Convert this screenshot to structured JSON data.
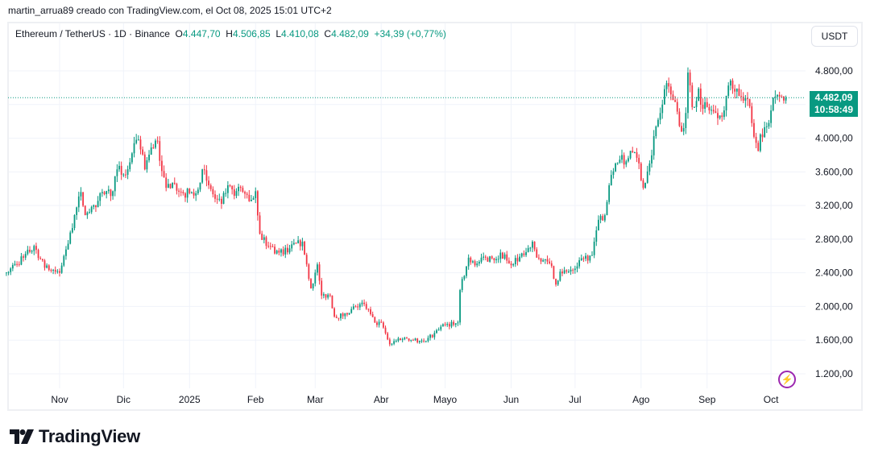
{
  "caption": "martin_arrua89 creado con TradingView.com, el Oct 08, 2025 15:01 UTC+2",
  "legend": {
    "symbol": "Ethereum / TetherUS · 1D · Binance",
    "open_label": "O",
    "open": "4.447,70",
    "high_label": "H",
    "high": "4.506,85",
    "low_label": "L",
    "low": "4.410,08",
    "close_label": "C",
    "close": "4.482,09",
    "change": "+34,39 (+0,77%)"
  },
  "currency_button": "USDT",
  "last_price": {
    "price": "4.482,09",
    "countdown": "10:58:49"
  },
  "logo_text": "TradingView",
  "icons": {
    "alert": "lightning-icon",
    "logo": "tradingview-logo-icon"
  },
  "colors": {
    "up": "#089981",
    "down": "#F23645",
    "last_price_line": "#089981",
    "alert": "#9c27b0"
  },
  "chart_data": {
    "type": "candlestick",
    "interval": "1D",
    "y_ticks": [
      "4.800,00",
      "4.000,00",
      "3.600,00",
      "3.200,00",
      "2.800,00",
      "2.400,00",
      "2.000,00",
      "1.600,00",
      "1.200,00"
    ],
    "y_tick_values": [
      4800,
      4000,
      3600,
      3200,
      2800,
      2400,
      2000,
      1600,
      1200
    ],
    "x_ticks": [
      {
        "label": "Nov",
        "date": "2024-11-01"
      },
      {
        "label": "Dic",
        "date": "2024-12-01"
      },
      {
        "label": "2025",
        "date": "2025-01-01"
      },
      {
        "label": "Feb",
        "date": "2025-02-01"
      },
      {
        "label": "Mar",
        "date": "2025-03-01"
      },
      {
        "label": "Abr",
        "date": "2025-04-01"
      },
      {
        "label": "Mayo",
        "date": "2025-05-01"
      },
      {
        "label": "Jun",
        "date": "2025-06-01"
      },
      {
        "label": "Jul",
        "date": "2025-07-01"
      },
      {
        "label": "Ago",
        "date": "2025-08-01"
      },
      {
        "label": "Sep",
        "date": "2025-09-01"
      },
      {
        "label": "Oct",
        "date": "2025-10-01"
      }
    ],
    "ylim": [
      1000,
      5000
    ],
    "grid": true,
    "last_candle": {
      "date": "2025-10-08",
      "open": 4447.7,
      "high": 4506.85,
      "low": 4410.08,
      "close": 4482.09
    },
    "approx_closes": [
      [
        "2024-10-07",
        2405
      ],
      [
        "2024-10-15",
        2580
      ],
      [
        "2024-10-20",
        2720
      ],
      [
        "2024-10-25",
        2460
      ],
      [
        "2024-11-01",
        2400
      ],
      [
        "2024-11-06",
        2880
      ],
      [
        "2024-11-11",
        3360
      ],
      [
        "2024-11-13",
        3085
      ],
      [
        "2024-11-18",
        3180
      ],
      [
        "2024-11-21",
        3360
      ],
      [
        "2024-11-26",
        3370
      ],
      [
        "2024-11-28",
        3630
      ],
      [
        "2024-12-02",
        3565
      ],
      [
        "2024-12-05",
        3820
      ],
      [
        "2024-12-08",
        3985
      ],
      [
        "2024-12-11",
        3630
      ],
      [
        "2024-12-14",
        3890
      ],
      [
        "2024-12-17",
        3965
      ],
      [
        "2024-12-19",
        3610
      ],
      [
        "2024-12-21",
        3410
      ],
      [
        "2024-12-24",
        3470
      ],
      [
        "2024-12-29",
        3345
      ],
      [
        "2025-01-04",
        3345
      ],
      [
        "2025-01-07",
        3630
      ],
      [
        "2025-01-10",
        3440
      ],
      [
        "2025-01-13",
        3280
      ],
      [
        "2025-01-16",
        3220
      ],
      [
        "2025-01-19",
        3440
      ],
      [
        "2025-01-22",
        3315
      ],
      [
        "2025-01-25",
        3410
      ],
      [
        "2025-01-29",
        3250
      ],
      [
        "2025-02-01",
        3370
      ],
      [
        "2025-02-03",
        2865
      ],
      [
        "2025-02-07",
        2720
      ],
      [
        "2025-02-12",
        2640
      ],
      [
        "2025-02-17",
        2690
      ],
      [
        "2025-02-23",
        2770
      ],
      [
        "2025-02-25",
        2500
      ],
      [
        "2025-02-27",
        2215
      ],
      [
        "2025-03-02",
        2500
      ],
      [
        "2025-03-04",
        2130
      ],
      [
        "2025-03-08",
        2130
      ],
      [
        "2025-03-10",
        1880
      ],
      [
        "2025-03-16",
        1905
      ],
      [
        "2025-03-20",
        2000
      ],
      [
        "2025-03-24",
        2030
      ],
      [
        "2025-03-29",
        1810
      ],
      [
        "2025-04-01",
        1810
      ],
      [
        "2025-04-05",
        1550
      ],
      [
        "2025-04-09",
        1620
      ],
      [
        "2025-04-13",
        1620
      ],
      [
        "2025-04-19",
        1590
      ],
      [
        "2025-04-22",
        1590
      ],
      [
        "2025-04-26",
        1685
      ],
      [
        "2025-05-01",
        1780
      ],
      [
        "2025-05-07",
        1810
      ],
      [
        "2025-05-08",
        2195
      ],
      [
        "2025-05-12",
        2580
      ],
      [
        "2025-05-16",
        2510
      ],
      [
        "2025-05-20",
        2580
      ],
      [
        "2025-05-24",
        2550
      ],
      [
        "2025-05-27",
        2640
      ],
      [
        "2025-05-31",
        2510
      ],
      [
        "2025-06-07",
        2610
      ],
      [
        "2025-06-11",
        2770
      ],
      [
        "2025-06-13",
        2580
      ],
      [
        "2025-06-16",
        2550
      ],
      [
        "2025-06-20",
        2480
      ],
      [
        "2025-06-22",
        2260
      ],
      [
        "2025-06-24",
        2415
      ],
      [
        "2025-06-27",
        2415
      ],
      [
        "2025-07-01",
        2450
      ],
      [
        "2025-07-03",
        2550
      ],
      [
        "2025-07-09",
        2610
      ],
      [
        "2025-07-10",
        2770
      ],
      [
        "2025-07-12",
        3030
      ],
      [
        "2025-07-15",
        3085
      ],
      [
        "2025-07-17",
        3440
      ],
      [
        "2025-07-20",
        3700
      ],
      [
        "2025-07-22",
        3745
      ],
      [
        "2025-07-25",
        3725
      ],
      [
        "2025-07-27",
        3850
      ],
      [
        "2025-07-31",
        3700
      ],
      [
        "2025-08-02",
        3410
      ],
      [
        "2025-08-05",
        3700
      ],
      [
        "2025-08-08",
        4140
      ],
      [
        "2025-08-11",
        4400
      ],
      [
        "2025-08-13",
        4655
      ],
      [
        "2025-08-15",
        4520
      ],
      [
        "2025-08-17",
        4430
      ],
      [
        "2025-08-20",
        4080
      ],
      [
        "2025-08-22",
        4300
      ],
      [
        "2025-08-23",
        4780
      ],
      [
        "2025-08-25",
        4370
      ],
      [
        "2025-08-28",
        4590
      ],
      [
        "2025-08-30",
        4350
      ],
      [
        "2025-09-01",
        4370
      ],
      [
        "2025-09-05",
        4300
      ],
      [
        "2025-09-09",
        4330
      ],
      [
        "2025-09-12",
        4685
      ],
      [
        "2025-09-15",
        4590
      ],
      [
        "2025-09-17",
        4495
      ],
      [
        "2025-09-20",
        4465
      ],
      [
        "2025-09-22",
        4180
      ],
      [
        "2025-09-25",
        3850
      ],
      [
        "2025-09-26",
        4045
      ],
      [
        "2025-09-29",
        4140
      ],
      [
        "2025-10-01",
        4330
      ],
      [
        "2025-10-03",
        4495
      ],
      [
        "2025-10-05",
        4495
      ],
      [
        "2025-10-07",
        4447.7
      ],
      [
        "2025-10-08",
        4482.09
      ]
    ]
  }
}
